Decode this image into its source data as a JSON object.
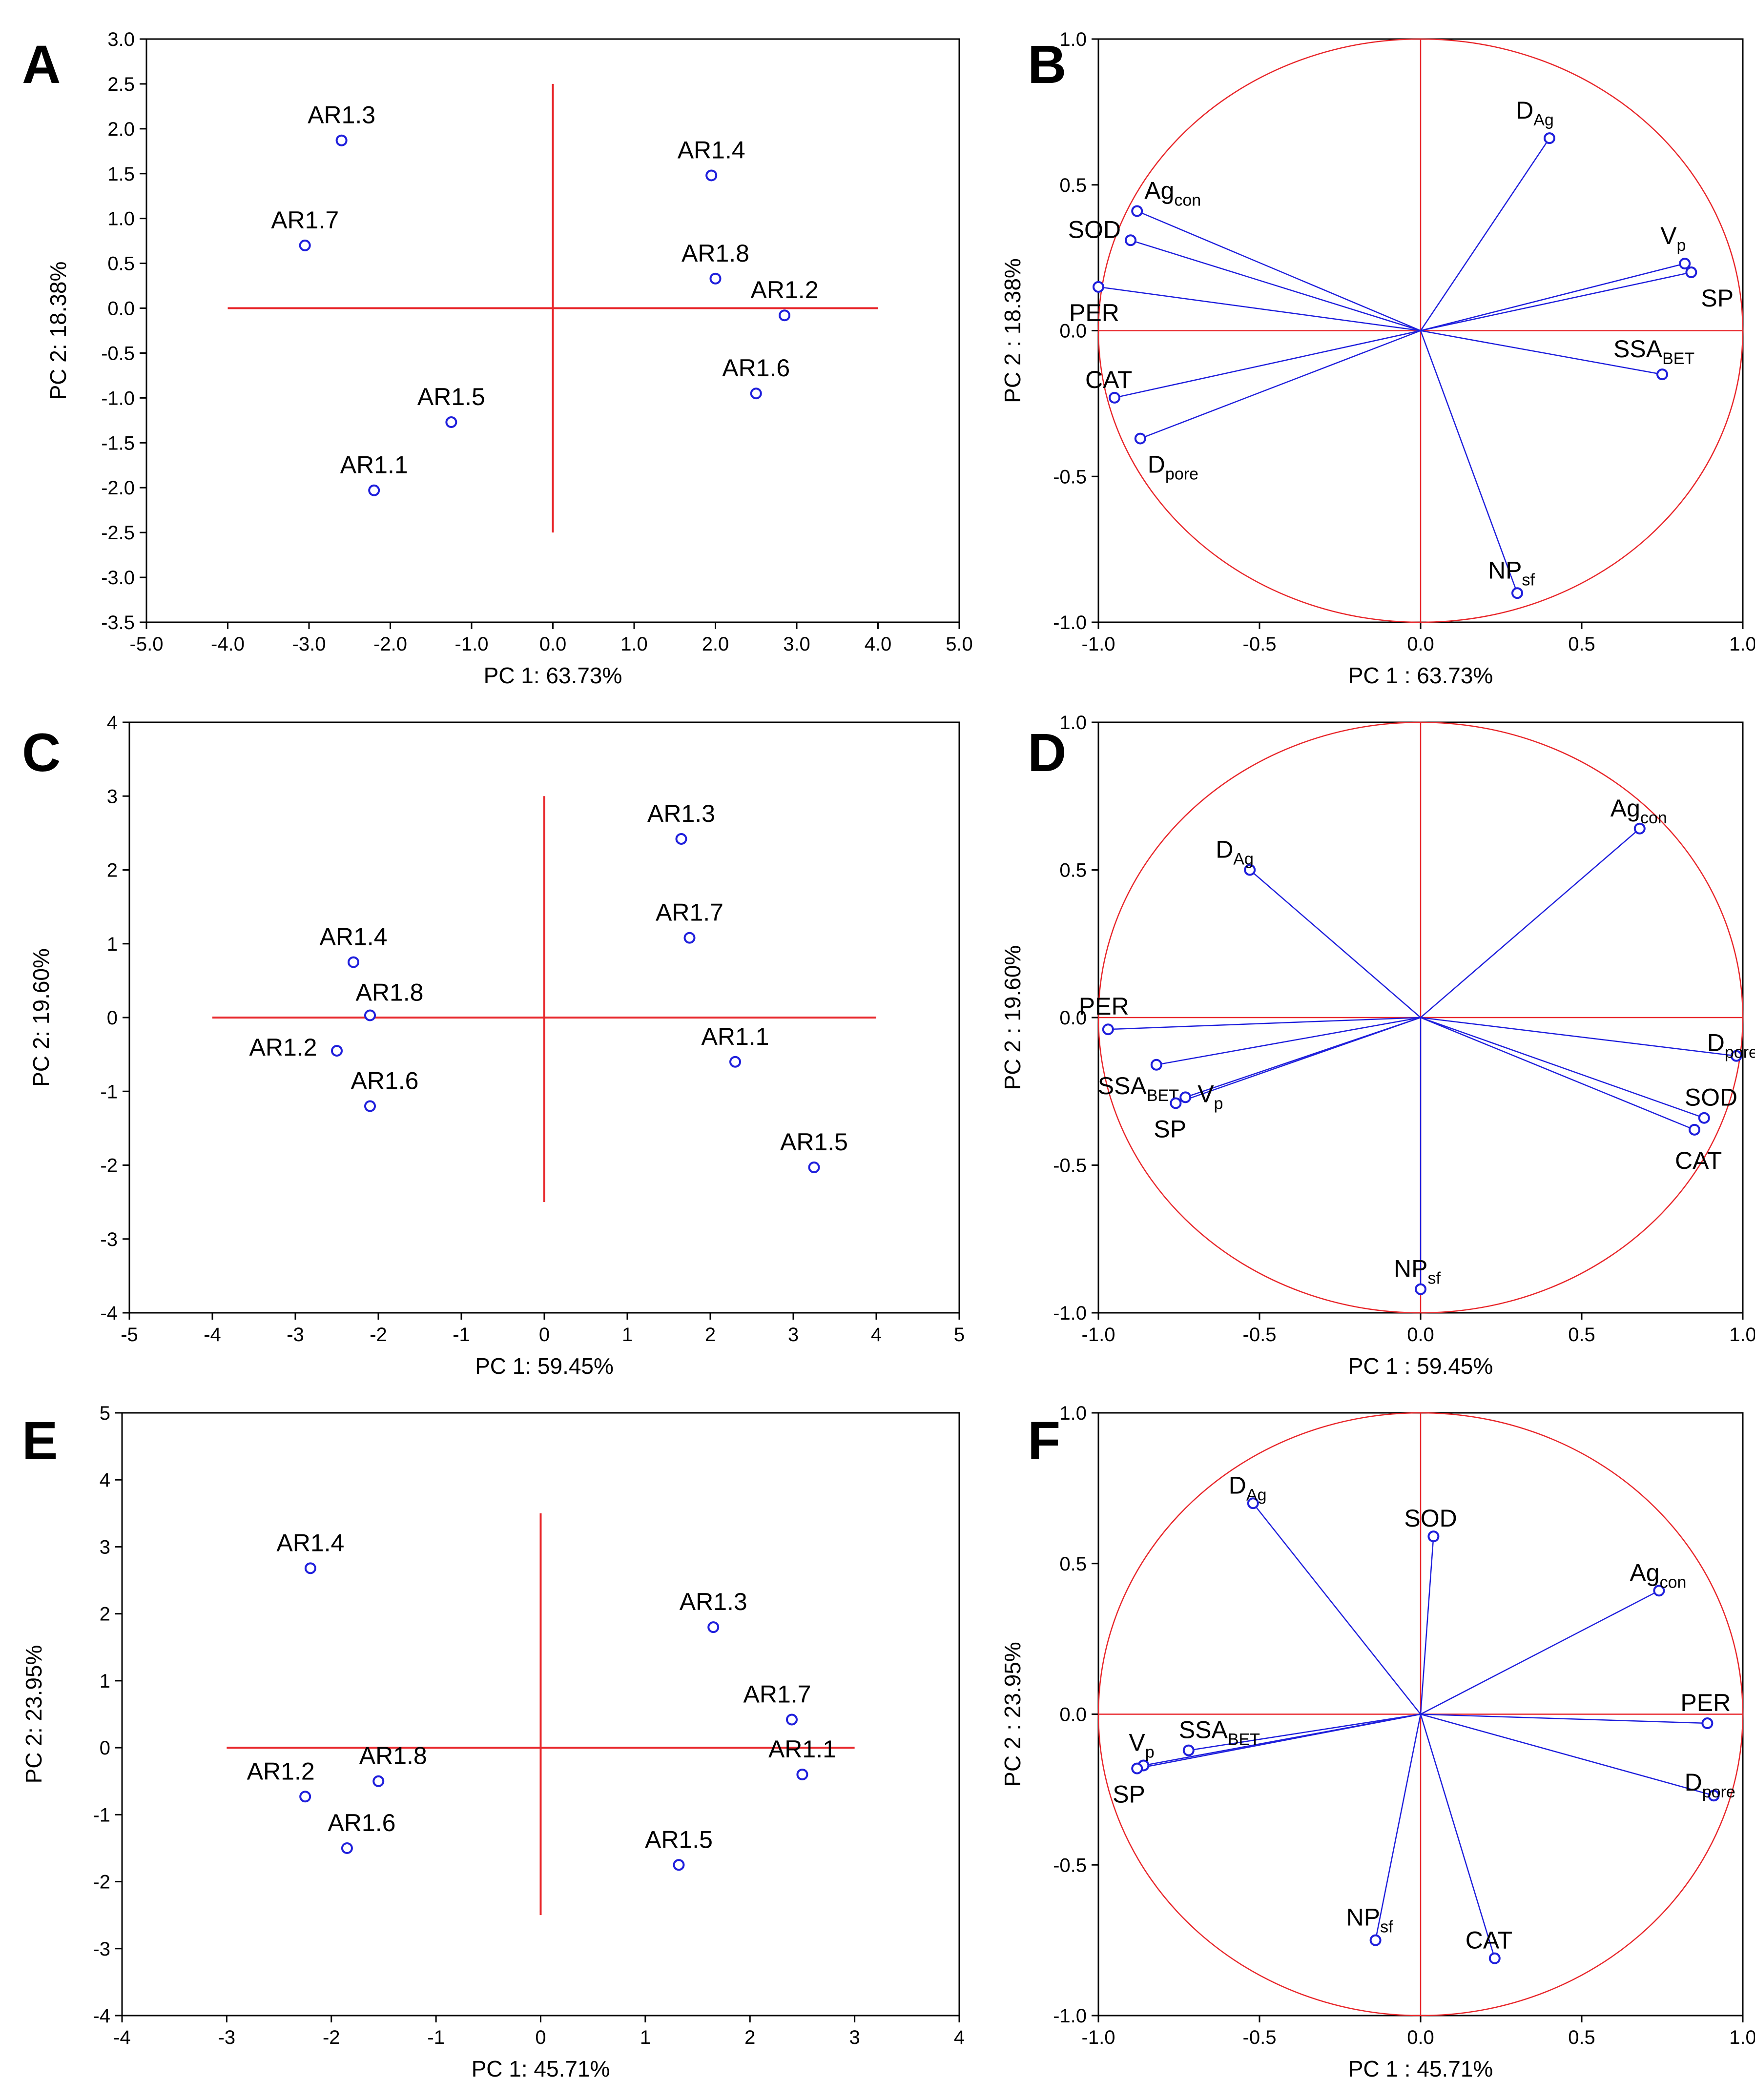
{
  "chart_data": [
    {
      "panel": "A",
      "type": "scatter",
      "xlabel": "PC 1: 63.73%",
      "ylabel": "PC 2: 18.38%",
      "xlim": [
        -5,
        5
      ],
      "ylim": [
        -3.5,
        3.0
      ],
      "xticks": [
        -5,
        -4,
        -3,
        -2,
        -1,
        0,
        1,
        2,
        3,
        4,
        5
      ],
      "yticks": [
        -3.5,
        -3.0,
        -2.5,
        -2.0,
        -1.5,
        -1.0,
        -0.5,
        0.0,
        0.5,
        1.0,
        1.5,
        2.0,
        2.5,
        3.0
      ],
      "tick_decimals": 1,
      "ref_lines": {
        "h": {
          "y": 0,
          "x1": -4,
          "x2": 4
        },
        "v": {
          "x": 0,
          "y1": -2.5,
          "y2": 2.5
        }
      },
      "points": [
        {
          "label": "AR1.3",
          "x": -2.6,
          "y": 1.87
        },
        {
          "label": "AR1.7",
          "x": -3.05,
          "y": 0.7
        },
        {
          "label": "AR1.4",
          "x": 1.95,
          "y": 1.48
        },
        {
          "label": "AR1.8",
          "x": 2.0,
          "y": 0.33
        },
        {
          "label": "AR1.2",
          "x": 2.85,
          "y": -0.08
        },
        {
          "label": "AR1.6",
          "x": 2.5,
          "y": -0.95
        },
        {
          "label": "AR1.5",
          "x": -1.25,
          "y": -1.27
        },
        {
          "label": "AR1.1",
          "x": -2.2,
          "y": -2.03
        }
      ]
    },
    {
      "panel": "B",
      "type": "scatter",
      "xlabel": "PC 1 : 63.73%",
      "ylabel": "PC 2 : 18.38%",
      "xlim": [
        -1.0,
        1.0
      ],
      "ylim": [
        -1.0,
        1.0
      ],
      "xticks": [
        -1.0,
        -0.5,
        0.0,
        0.5,
        1.0
      ],
      "yticks": [
        -1.0,
        -0.5,
        0.0,
        0.5,
        1.0
      ],
      "tick_decimals": 1,
      "unit_circle": true,
      "points": [
        {
          "label": "D",
          "sub": "Ag",
          "x": 0.4,
          "y": 0.66
        },
        {
          "label": "Ag",
          "sub": "con",
          "x": -0.88,
          "y": 0.41
        },
        {
          "label": "SOD",
          "x": -0.9,
          "y": 0.31
        },
        {
          "label": "V",
          "sub": "p",
          "x": 0.82,
          "y": 0.23
        },
        {
          "label": "SP",
          "x": 0.84,
          "y": 0.2
        },
        {
          "label": "PER",
          "x": -1.0,
          "y": 0.15
        },
        {
          "label": "SSA",
          "sub": "BET",
          "x": 0.75,
          "y": -0.15
        },
        {
          "label": "CAT",
          "x": -0.95,
          "y": -0.23
        },
        {
          "label": "D",
          "sub": "pore",
          "x": -0.87,
          "y": -0.37
        },
        {
          "label": "NP",
          "sub": "sf",
          "x": 0.3,
          "y": -0.9
        }
      ]
    },
    {
      "panel": "C",
      "type": "scatter",
      "xlabel": "PC 1: 59.45%",
      "ylabel": "PC 2: 19.60%",
      "xlim": [
        -5,
        5
      ],
      "ylim": [
        -4,
        4
      ],
      "xticks": [
        -5,
        -4,
        -3,
        -2,
        -1,
        0,
        1,
        2,
        3,
        4,
        5
      ],
      "yticks": [
        -4,
        -3,
        -2,
        -1,
        0,
        1,
        2,
        3,
        4
      ],
      "tick_decimals": 0,
      "ref_lines": {
        "h": {
          "y": 0,
          "x1": -4,
          "x2": 4
        },
        "v": {
          "x": 0,
          "y1": -2.5,
          "y2": 3.0
        }
      },
      "points": [
        {
          "label": "AR1.3",
          "x": 1.65,
          "y": 2.42
        },
        {
          "label": "AR1.7",
          "x": 1.75,
          "y": 1.08
        },
        {
          "label": "AR1.4",
          "x": -2.3,
          "y": 0.75
        },
        {
          "label": "AR1.8",
          "x": -2.1,
          "y": 0.03
        },
        {
          "label": "AR1.2",
          "x": -2.5,
          "y": -0.45
        },
        {
          "label": "AR1.6",
          "x": -2.1,
          "y": -1.2
        },
        {
          "label": "AR1.1",
          "x": 2.3,
          "y": -0.6
        },
        {
          "label": "AR1.5",
          "x": 3.25,
          "y": -2.03
        }
      ]
    },
    {
      "panel": "D",
      "type": "scatter",
      "xlabel": "PC 1 : 59.45%",
      "ylabel": "PC 2 : 19.60%",
      "xlim": [
        -1.0,
        1.0
      ],
      "ylim": [
        -1.0,
        1.0
      ],
      "xticks": [
        -1.0,
        -0.5,
        0.0,
        0.5,
        1.0
      ],
      "yticks": [
        -1.0,
        -0.5,
        0.0,
        0.5,
        1.0
      ],
      "tick_decimals": 1,
      "unit_circle": true,
      "points": [
        {
          "label": "Ag",
          "sub": "con",
          "x": 0.68,
          "y": 0.64
        },
        {
          "label": "D",
          "sub": "Ag",
          "x": -0.53,
          "y": 0.5
        },
        {
          "label": "PER",
          "x": -0.97,
          "y": -0.04
        },
        {
          "label": "D",
          "sub": "pore",
          "x": 0.98,
          "y": -0.13
        },
        {
          "label": "SSA",
          "sub": "BET",
          "x": -0.82,
          "y": -0.16
        },
        {
          "label": "V",
          "sub": "p",
          "x": -0.73,
          "y": -0.27
        },
        {
          "label": "SP",
          "x": -0.76,
          "y": -0.29
        },
        {
          "label": "SOD",
          "x": 0.88,
          "y": -0.34
        },
        {
          "label": "CAT",
          "x": 0.85,
          "y": -0.38
        },
        {
          "label": "NP",
          "sub": "sf",
          "x": 0.0,
          "y": -0.92
        }
      ]
    },
    {
      "panel": "E",
      "type": "scatter",
      "xlabel": "PC 1: 45.71%",
      "ylabel": "PC 2: 23.95%",
      "xlim": [
        -4,
        4
      ],
      "ylim": [
        -4,
        5
      ],
      "xticks": [
        -4,
        -3,
        -2,
        -1,
        0,
        1,
        2,
        3,
        4
      ],
      "yticks": [
        -4,
        -3,
        -2,
        -1,
        0,
        1,
        2,
        3,
        4,
        5
      ],
      "tick_decimals": 0,
      "ref_lines": {
        "h": {
          "y": 0,
          "x1": -3,
          "x2": 3
        },
        "v": {
          "x": 0,
          "y1": -2.5,
          "y2": 3.5
        }
      },
      "points": [
        {
          "label": "AR1.4",
          "x": -2.2,
          "y": 2.68
        },
        {
          "label": "AR1.3",
          "x": 1.65,
          "y": 1.8
        },
        {
          "label": "AR1.7",
          "x": 2.4,
          "y": 0.42
        },
        {
          "label": "AR1.1",
          "x": 2.5,
          "y": -0.4
        },
        {
          "label": "AR1.2",
          "x": -2.25,
          "y": -0.73
        },
        {
          "label": "AR1.8",
          "x": -1.55,
          "y": -0.5
        },
        {
          "label": "AR1.6",
          "x": -1.85,
          "y": -1.5
        },
        {
          "label": "AR1.5",
          "x": 1.32,
          "y": -1.75
        }
      ]
    },
    {
      "panel": "F",
      "type": "scatter",
      "xlabel": "PC 1 : 45.71%",
      "ylabel": "PC 2 : 23.95%",
      "xlim": [
        -1.0,
        1.0
      ],
      "ylim": [
        -1.0,
        1.0
      ],
      "xticks": [
        -1.0,
        -0.5,
        0.0,
        0.5,
        1.0
      ],
      "yticks": [
        -1.0,
        -0.5,
        0.0,
        0.5,
        1.0
      ],
      "tick_decimals": 1,
      "unit_circle": true,
      "points": [
        {
          "label": "D",
          "sub": "Ag",
          "x": -0.52,
          "y": 0.7
        },
        {
          "label": "SOD",
          "x": 0.04,
          "y": 0.59
        },
        {
          "label": "Ag",
          "sub": "con",
          "x": 0.74,
          "y": 0.41
        },
        {
          "label": "PER",
          "x": 0.89,
          "y": -0.03
        },
        {
          "label": "D",
          "sub": "pore",
          "x": 0.91,
          "y": -0.27
        },
        {
          "label": "V",
          "sub": "p",
          "x": -0.86,
          "y": -0.17
        },
        {
          "label": "SP",
          "x": -0.88,
          "y": -0.18
        },
        {
          "label": "SSA",
          "sub": "BET",
          "x": -0.72,
          "y": -0.12
        },
        {
          "label": "NP",
          "sub": "sf",
          "x": -0.14,
          "y": -0.75
        },
        {
          "label": "CAT",
          "x": 0.23,
          "y": -0.81
        }
      ]
    }
  ]
}
